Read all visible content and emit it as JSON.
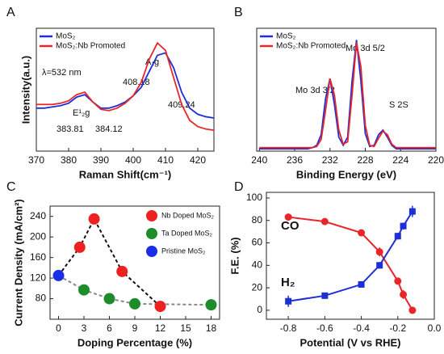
{
  "chart_data": [
    {
      "type": "line",
      "label": "A",
      "xlabel": "Raman Shift(cm⁻¹)",
      "ylabel": "Intensity(a.u.)",
      "x": [
        370,
        372.5,
        375,
        377.5,
        380,
        382.5,
        385,
        387.5,
        390,
        392.5,
        395,
        397.5,
        400,
        402.5,
        405,
        407.5,
        410,
        412.5,
        415,
        417.5,
        420,
        422.5,
        425
      ],
      "series": [
        {
          "name": "MoS₂",
          "color": "#1f2fd8",
          "values": [
            35,
            35,
            36,
            37,
            39,
            44,
            46,
            40,
            35,
            35,
            37,
            40,
            45,
            52,
            65,
            78,
            80,
            68,
            48,
            35,
            30,
            28,
            27
          ]
        },
        {
          "name": "MoS₂:Nb Promoted",
          "color": "#e8262a",
          "values": [
            38,
            38,
            38,
            39,
            41,
            46,
            48,
            40,
            34,
            33,
            35,
            39,
            45,
            56,
            75,
            88,
            82,
            60,
            38,
            25,
            20,
            18,
            17
          ]
        }
      ],
      "annotations": [
        {
          "text": "λ=532 nm",
          "color": "#111"
        },
        {
          "text": "E¹₂g",
          "color": "#111"
        },
        {
          "text": "A₁g",
          "color": "#111"
        },
        {
          "text": "383.81",
          "color": "#e8262a"
        },
        {
          "text": "384.12",
          "color": "#1f2fd8"
        },
        {
          "text": "408.18",
          "color": "#e8262a"
        },
        {
          "text": "409.24",
          "color": "#1f2fd8"
        }
      ],
      "xlim": [
        370,
        425
      ],
      "xticks": [
        370,
        380,
        390,
        400,
        410,
        420
      ],
      "ylim": [
        0,
        100
      ]
    },
    {
      "type": "line",
      "label": "B",
      "xlabel": "Binding Energy (eV)",
      "x": [
        240,
        239.5,
        239,
        238.5,
        238,
        237.5,
        237,
        236.5,
        236,
        235.5,
        235,
        234.5,
        234,
        233.5,
        233,
        232.5,
        232,
        231.5,
        231,
        230.5,
        230,
        229.5,
        229,
        228.5,
        228,
        227.5,
        227,
        226.5,
        226,
        225.5,
        225,
        224.5,
        224,
        223.5,
        223,
        222.5,
        222,
        221.5,
        221,
        220.5,
        220
      ],
      "series": [
        {
          "name": "MoS₂",
          "color": "#1f2fd8",
          "values": [
            2,
            2,
            2,
            2,
            2,
            2,
            2,
            2,
            2,
            2,
            2,
            2,
            3,
            5,
            14,
            45,
            62,
            40,
            12,
            5,
            12,
            60,
            95,
            60,
            15,
            4,
            5,
            14,
            18,
            12,
            5,
            2,
            2,
            2,
            2,
            2,
            2,
            2,
            2,
            2,
            2
          ]
        },
        {
          "name": "MoS₂:Nb Promoted",
          "color": "#e8262a",
          "values": [
            3,
            3,
            3,
            3,
            3,
            3,
            3,
            3,
            3,
            3,
            3,
            3,
            3,
            4,
            10,
            35,
            62,
            48,
            18,
            6,
            8,
            48,
            93,
            72,
            22,
            5,
            4,
            11,
            17,
            14,
            6,
            3,
            3,
            3,
            3,
            3,
            3,
            3,
            3,
            3,
            3
          ]
        }
      ],
      "annotations": [
        {
          "text": "Mo 3d 3/2",
          "color": "#111"
        },
        {
          "text": "Mo 3d 5/2",
          "color": "#111"
        },
        {
          "text": "S 2S",
          "color": "#111"
        }
      ],
      "xlim": [
        240.3,
        220
      ],
      "xticks": [
        240,
        236,
        232,
        228,
        224,
        220
      ],
      "ylim": [
        0,
        105
      ]
    },
    {
      "type": "scatter",
      "label": "C",
      "xlabel": "Doping Percentage (%)",
      "ylabel": "Current Density (mA/cm²)",
      "series": [
        {
          "name": "Nb Doped MoS₂",
          "color": "#ee2020",
          "x": [
            2.5,
            4.2,
            7.5,
            12
          ],
          "values": [
            180,
            235,
            133,
            65
          ]
        },
        {
          "name": "Ta Doped MoS₂",
          "color": "#1e8c2a",
          "x": [
            3,
            6,
            9,
            18
          ],
          "values": [
            97,
            80,
            70,
            68
          ]
        },
        {
          "name": "Pristine MoS₂",
          "color": "#1a2ee8",
          "x": [
            0
          ],
          "values": [
            125
          ]
        }
      ],
      "xlim": [
        -1,
        19
      ],
      "xticks": [
        0,
        3,
        6,
        9,
        12,
        15,
        18
      ],
      "ylim": [
        40,
        260
      ],
      "yticks": [
        80,
        120,
        160,
        200,
        240
      ]
    },
    {
      "type": "line",
      "label": "D",
      "xlabel": "Potential (V vs RHE)",
      "ylabel": "F.E. (%)",
      "x": [
        -0.8,
        -0.6,
        -0.4,
        -0.3,
        -0.2,
        -0.17,
        -0.12
      ],
      "series": [
        {
          "name": "CO",
          "color": "#e8262a",
          "values": [
            83,
            79,
            69,
            52,
            26,
            14,
            0
          ],
          "errors": [
            3,
            2,
            2,
            4,
            3,
            4,
            1
          ]
        },
        {
          "name": "H₂",
          "color": "#1f2fd8",
          "values": [
            8,
            13,
            23,
            40,
            66,
            75,
            88
          ],
          "errors": [
            5,
            2,
            2,
            3,
            3,
            3,
            5
          ]
        }
      ],
      "xlim": [
        -0.92,
        0.0
      ],
      "xticks": [
        -0.8,
        -0.6,
        -0.4,
        -0.2,
        {
          "value": 0,
          "label": "0.0"
        }
      ],
      "ylim": [
        -8,
        105
      ],
      "yticks": [
        0,
        20,
        40,
        60,
        80,
        100
      ]
    }
  ]
}
